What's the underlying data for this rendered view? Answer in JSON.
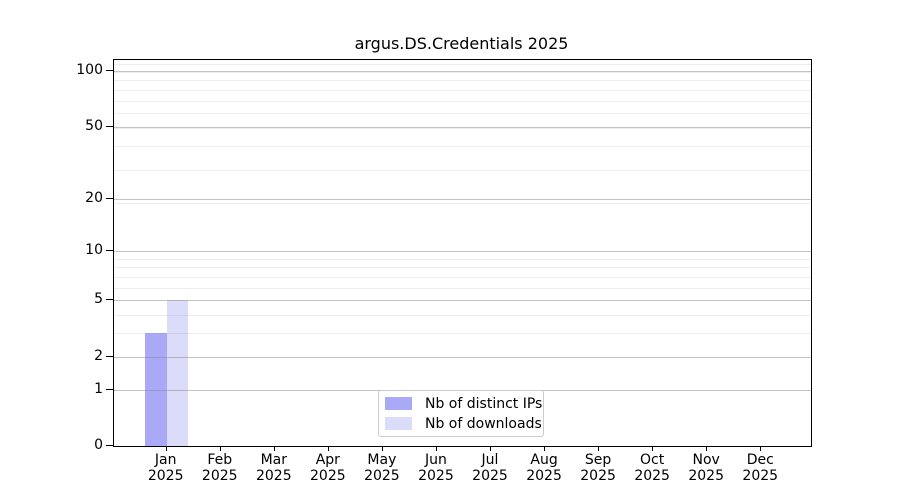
{
  "title": "argus.DS.Credentials 2025",
  "chart_data": {
    "type": "bar",
    "title": "argus.DS.Credentials 2025",
    "categories": [
      "Jan 2025",
      "Feb 2025",
      "Mar 2025",
      "Apr 2025",
      "May 2025",
      "Jun 2025",
      "Jul 2025",
      "Aug 2025",
      "Sep 2025",
      "Oct 2025",
      "Nov 2025",
      "Dec 2025"
    ],
    "series": [
      {
        "name": "Nb of distinct IPs",
        "color": "#a9a9f7",
        "values": [
          3,
          0,
          0,
          0,
          0,
          0,
          0,
          0,
          0,
          0,
          0,
          0
        ]
      },
      {
        "name": "Nb of downloads",
        "color": "#dbdbfa",
        "values": [
          5,
          0,
          0,
          0,
          0,
          0,
          0,
          0,
          0,
          0,
          0,
          0
        ]
      }
    ],
    "xlabel": "",
    "ylabel": "",
    "yscale": "log1p",
    "ylim": [
      0,
      114.7
    ],
    "yticks": [
      0,
      1,
      2,
      5,
      10,
      20,
      50,
      100
    ],
    "minor_grid_values": [
      3,
      4,
      6,
      7,
      8,
      9,
      19,
      29,
      39,
      49,
      59,
      69,
      79,
      89,
      99,
      109
    ],
    "grid": "both",
    "legend_position": "lower center",
    "colors": {
      "major_grid": "#c6c6c6",
      "minor_grid": "#ececec",
      "axis": "#000000",
      "text": "#000000",
      "legend_border": "#cccccc",
      "background": "#ffffff"
    }
  }
}
